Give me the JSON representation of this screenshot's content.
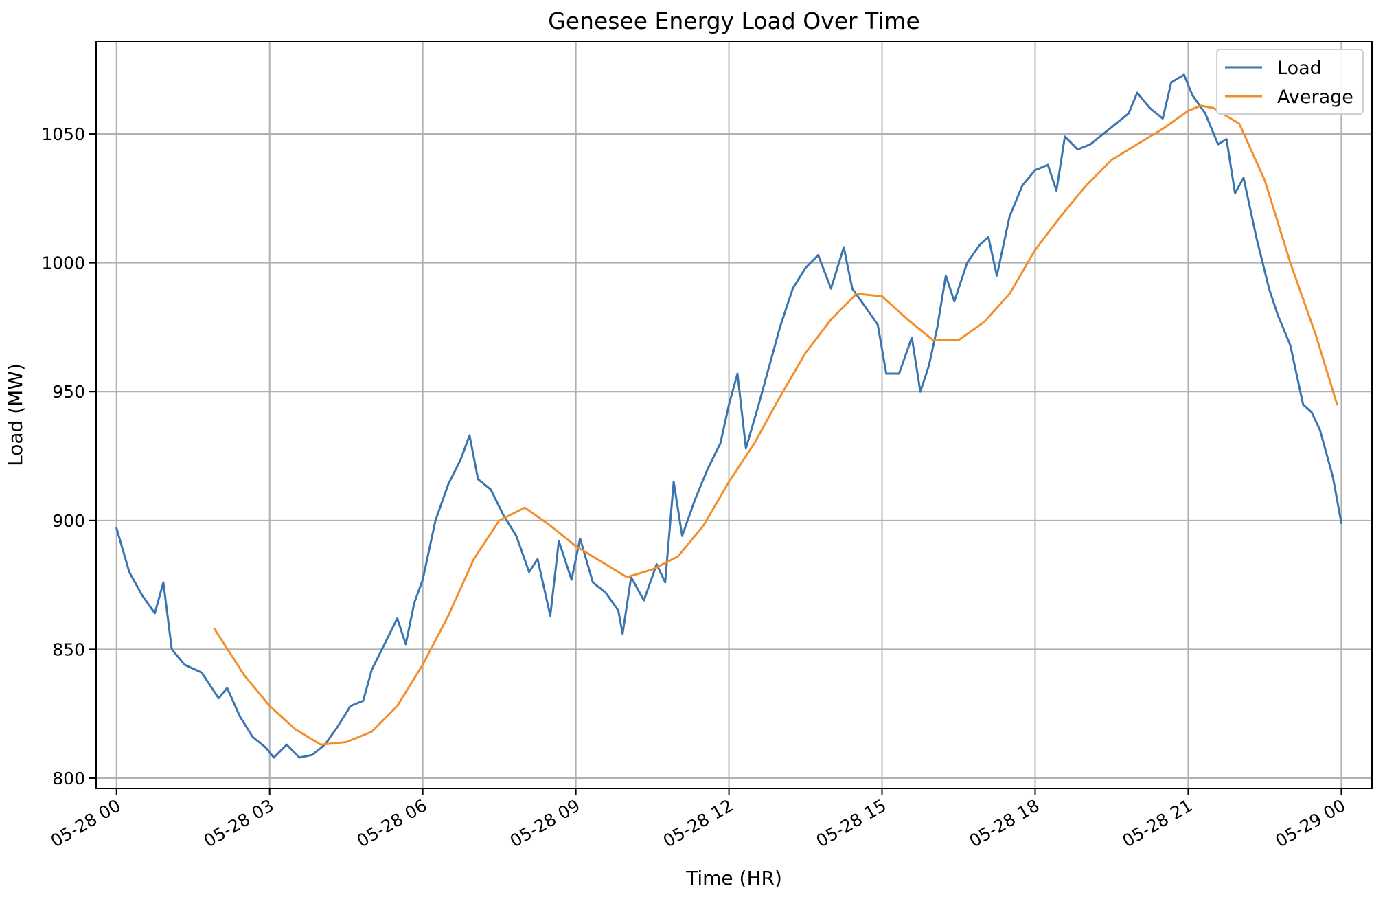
{
  "chart_data": {
    "type": "line",
    "title": "Genesee Energy Load Over Time",
    "xlabel": "Time (HR)",
    "ylabel": "Load (MW)",
    "xlim": [
      "2025-05-27T23:36",
      "2025-05-29T00:36"
    ],
    "ylim": [
      796,
      1086
    ],
    "grid": true,
    "legend_position": "top-right",
    "x_ticks": [
      {
        "t": "2025-05-28T00:00",
        "label": "05-28 00"
      },
      {
        "t": "2025-05-28T03:00",
        "label": "05-28 03"
      },
      {
        "t": "2025-05-28T06:00",
        "label": "05-28 06"
      },
      {
        "t": "2025-05-28T09:00",
        "label": "05-28 09"
      },
      {
        "t": "2025-05-28T12:00",
        "label": "05-28 12"
      },
      {
        "t": "2025-05-28T15:00",
        "label": "05-28 15"
      },
      {
        "t": "2025-05-28T18:00",
        "label": "05-28 18"
      },
      {
        "t": "2025-05-28T21:00",
        "label": "05-28 21"
      },
      {
        "t": "2025-05-29T00:00",
        "label": "05-29 00"
      }
    ],
    "y_ticks": [
      {
        "v": 800,
        "label": "800"
      },
      {
        "v": 850,
        "label": "850"
      },
      {
        "v": 900,
        "label": "900"
      },
      {
        "v": 950,
        "label": "950"
      },
      {
        "v": 1000,
        "label": "1000"
      },
      {
        "v": 1050,
        "label": "1050"
      }
    ],
    "series": [
      {
        "name": "Load",
        "color": "#3a75b0",
        "points": [
          [
            "2025-05-28T00:00",
            897
          ],
          [
            "2025-05-28T00:15",
            880
          ],
          [
            "2025-05-28T00:30",
            871
          ],
          [
            "2025-05-28T00:45",
            864
          ],
          [
            "2025-05-28T00:55",
            876
          ],
          [
            "2025-05-28T01:05",
            850
          ],
          [
            "2025-05-28T01:20",
            844
          ],
          [
            "2025-05-28T01:40",
            841
          ],
          [
            "2025-05-28T02:00",
            831
          ],
          [
            "2025-05-28T02:10",
            835
          ],
          [
            "2025-05-28T02:25",
            824
          ],
          [
            "2025-05-28T02:40",
            816
          ],
          [
            "2025-05-28T02:55",
            812
          ],
          [
            "2025-05-28T03:05",
            808
          ],
          [
            "2025-05-28T03:20",
            813
          ],
          [
            "2025-05-28T03:35",
            808
          ],
          [
            "2025-05-28T03:50",
            809
          ],
          [
            "2025-05-28T04:05",
            813
          ],
          [
            "2025-05-28T04:20",
            820
          ],
          [
            "2025-05-28T04:35",
            828
          ],
          [
            "2025-05-28T04:50",
            830
          ],
          [
            "2025-05-28T05:00",
            842
          ],
          [
            "2025-05-28T05:15",
            852
          ],
          [
            "2025-05-28T05:30",
            862
          ],
          [
            "2025-05-28T05:40",
            852
          ],
          [
            "2025-05-28T05:50",
            868
          ],
          [
            "2025-05-28T06:00",
            877
          ],
          [
            "2025-05-28T06:15",
            900
          ],
          [
            "2025-05-28T06:30",
            914
          ],
          [
            "2025-05-28T06:45",
            924
          ],
          [
            "2025-05-28T06:55",
            933
          ],
          [
            "2025-05-28T07:05",
            916
          ],
          [
            "2025-05-28T07:20",
            912
          ],
          [
            "2025-05-28T07:35",
            902
          ],
          [
            "2025-05-28T07:50",
            894
          ],
          [
            "2025-05-28T08:05",
            880
          ],
          [
            "2025-05-28T08:15",
            885
          ],
          [
            "2025-05-28T08:30",
            863
          ],
          [
            "2025-05-28T08:40",
            892
          ],
          [
            "2025-05-28T08:55",
            877
          ],
          [
            "2025-05-28T09:05",
            893
          ],
          [
            "2025-05-28T09:20",
            876
          ],
          [
            "2025-05-28T09:35",
            872
          ],
          [
            "2025-05-28T09:50",
            865
          ],
          [
            "2025-05-28T09:55",
            856
          ],
          [
            "2025-05-28T10:05",
            878
          ],
          [
            "2025-05-28T10:20",
            869
          ],
          [
            "2025-05-28T10:35",
            883
          ],
          [
            "2025-05-28T10:45",
            876
          ],
          [
            "2025-05-28T10:55",
            915
          ],
          [
            "2025-05-28T11:05",
            894
          ],
          [
            "2025-05-28T11:20",
            908
          ],
          [
            "2025-05-28T11:35",
            920
          ],
          [
            "2025-05-28T11:50",
            930
          ],
          [
            "2025-05-28T12:00",
            945
          ],
          [
            "2025-05-28T12:10",
            957
          ],
          [
            "2025-05-28T12:20",
            928
          ],
          [
            "2025-05-28T12:35",
            945
          ],
          [
            "2025-05-28T12:45",
            957
          ],
          [
            "2025-05-28T13:00",
            975
          ],
          [
            "2025-05-28T13:15",
            990
          ],
          [
            "2025-05-28T13:30",
            998
          ],
          [
            "2025-05-28T13:45",
            1003
          ],
          [
            "2025-05-28T14:00",
            990
          ],
          [
            "2025-05-28T14:15",
            1006
          ],
          [
            "2025-05-28T14:25",
            990
          ],
          [
            "2025-05-28T14:40",
            983
          ],
          [
            "2025-05-28T14:55",
            976
          ],
          [
            "2025-05-28T15:05",
            957
          ],
          [
            "2025-05-28T15:20",
            957
          ],
          [
            "2025-05-28T15:35",
            971
          ],
          [
            "2025-05-28T15:45",
            950
          ],
          [
            "2025-05-28T15:55",
            960
          ],
          [
            "2025-05-28T16:05",
            975
          ],
          [
            "2025-05-28T16:15",
            995
          ],
          [
            "2025-05-28T16:25",
            985
          ],
          [
            "2025-05-28T16:40",
            1000
          ],
          [
            "2025-05-28T16:55",
            1007
          ],
          [
            "2025-05-28T17:05",
            1010
          ],
          [
            "2025-05-28T17:15",
            995
          ],
          [
            "2025-05-28T17:30",
            1018
          ],
          [
            "2025-05-28T17:45",
            1030
          ],
          [
            "2025-05-28T18:00",
            1036
          ],
          [
            "2025-05-28T18:15",
            1038
          ],
          [
            "2025-05-28T18:25",
            1028
          ],
          [
            "2025-05-28T18:35",
            1049
          ],
          [
            "2025-05-28T18:50",
            1044
          ],
          [
            "2025-05-28T19:05",
            1046
          ],
          [
            "2025-05-28T19:20",
            1050
          ],
          [
            "2025-05-28T19:35",
            1054
          ],
          [
            "2025-05-28T19:50",
            1058
          ],
          [
            "2025-05-28T20:00",
            1066
          ],
          [
            "2025-05-28T20:15",
            1060
          ],
          [
            "2025-05-28T20:30",
            1056
          ],
          [
            "2025-05-28T20:40",
            1070
          ],
          [
            "2025-05-28T20:55",
            1073
          ],
          [
            "2025-05-28T21:05",
            1065
          ],
          [
            "2025-05-28T21:20",
            1058
          ],
          [
            "2025-05-28T21:35",
            1046
          ],
          [
            "2025-05-28T21:45",
            1048
          ],
          [
            "2025-05-28T21:55",
            1027
          ],
          [
            "2025-05-28T22:05",
            1033
          ],
          [
            "2025-05-28T22:20",
            1010
          ],
          [
            "2025-05-28T22:35",
            990
          ],
          [
            "2025-05-28T22:45",
            980
          ],
          [
            "2025-05-28T23:00",
            968
          ],
          [
            "2025-05-28T23:15",
            945
          ],
          [
            "2025-05-28T23:25",
            942
          ],
          [
            "2025-05-28T23:35",
            935
          ],
          [
            "2025-05-28T23:50",
            917
          ],
          [
            "2025-05-29T00:00",
            899
          ]
        ]
      },
      {
        "name": "Average",
        "color": "#f28e2b",
        "points": [
          [
            "2025-05-28T01:55",
            858
          ],
          [
            "2025-05-28T02:30",
            840
          ],
          [
            "2025-05-28T03:00",
            828
          ],
          [
            "2025-05-28T03:30",
            819
          ],
          [
            "2025-05-28T04:00",
            813
          ],
          [
            "2025-05-28T04:30",
            814
          ],
          [
            "2025-05-28T05:00",
            818
          ],
          [
            "2025-05-28T05:30",
            828
          ],
          [
            "2025-05-28T06:00",
            844
          ],
          [
            "2025-05-28T06:30",
            863
          ],
          [
            "2025-05-28T07:00",
            885
          ],
          [
            "2025-05-28T07:30",
            900
          ],
          [
            "2025-05-28T08:00",
            905
          ],
          [
            "2025-05-28T08:30",
            898
          ],
          [
            "2025-05-28T09:00",
            890
          ],
          [
            "2025-05-28T09:30",
            884
          ],
          [
            "2025-05-28T10:00",
            878
          ],
          [
            "2025-05-28T10:30",
            881
          ],
          [
            "2025-05-28T11:00",
            886
          ],
          [
            "2025-05-28T11:30",
            898
          ],
          [
            "2025-05-28T12:00",
            915
          ],
          [
            "2025-05-28T12:30",
            930
          ],
          [
            "2025-05-28T13:00",
            948
          ],
          [
            "2025-05-28T13:30",
            965
          ],
          [
            "2025-05-28T14:00",
            978
          ],
          [
            "2025-05-28T14:30",
            988
          ],
          [
            "2025-05-28T15:00",
            987
          ],
          [
            "2025-05-28T15:30",
            978
          ],
          [
            "2025-05-28T16:00",
            970
          ],
          [
            "2025-05-28T16:30",
            970
          ],
          [
            "2025-05-28T17:00",
            977
          ],
          [
            "2025-05-28T17:30",
            988
          ],
          [
            "2025-05-28T18:00",
            1005
          ],
          [
            "2025-05-28T18:30",
            1018
          ],
          [
            "2025-05-28T19:00",
            1030
          ],
          [
            "2025-05-28T19:30",
            1040
          ],
          [
            "2025-05-28T20:00",
            1046
          ],
          [
            "2025-05-28T20:30",
            1052
          ],
          [
            "2025-05-28T21:00",
            1059
          ],
          [
            "2025-05-28T21:15",
            1061
          ],
          [
            "2025-05-28T21:30",
            1060
          ],
          [
            "2025-05-28T22:00",
            1054
          ],
          [
            "2025-05-28T22:30",
            1032
          ],
          [
            "2025-05-28T23:00",
            1000
          ],
          [
            "2025-05-28T23:30",
            972
          ],
          [
            "2025-05-28T23:55",
            945
          ]
        ]
      }
    ]
  }
}
